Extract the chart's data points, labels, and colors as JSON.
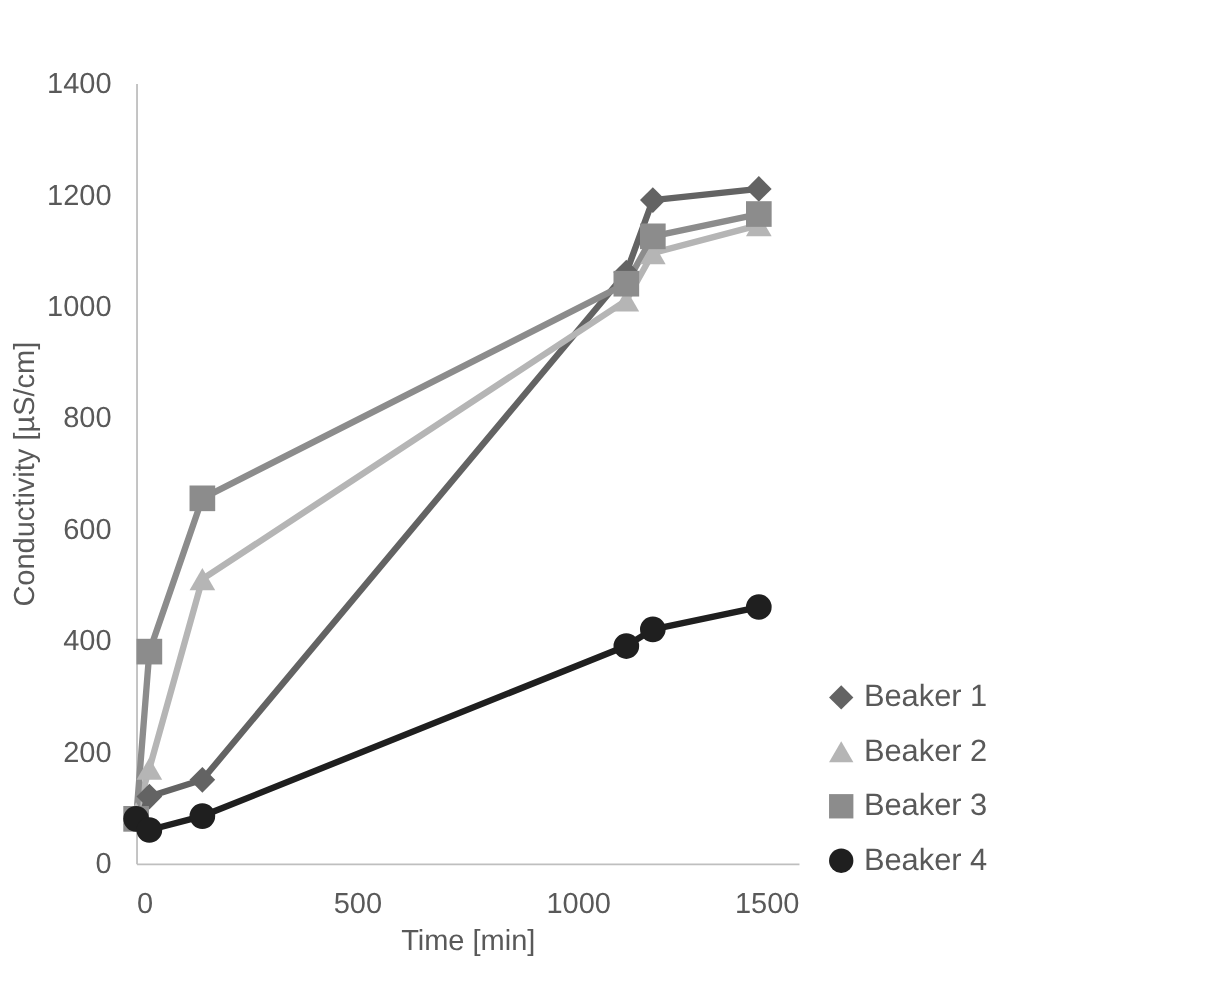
{
  "chart_data": {
    "type": "line",
    "xlabel": "Time [min]",
    "ylabel": "Conductivity [µS/cm]",
    "xlim": [
      0,
      1500
    ],
    "xticks": [
      0,
      500,
      1000,
      1500
    ],
    "ylim": [
      0,
      1400
    ],
    "yticks": [
      0,
      200,
      400,
      600,
      800,
      1000,
      1200,
      1400
    ],
    "x": [
      0,
      30,
      150,
      1110,
      1170,
      1410
    ],
    "series": [
      {
        "name": "Beaker 1",
        "color": "#636363",
        "marker": "diamond",
        "values": [
          80,
          120,
          150,
          1060,
          1190,
          1210
        ]
      },
      {
        "name": "Beaker 2",
        "color": "#b5b5b5",
        "marker": "triangle",
        "values": [
          90,
          170,
          510,
          1010,
          1095,
          1145
        ]
      },
      {
        "name": "Beaker 3",
        "color": "#8c8c8c",
        "marker": "square",
        "values": [
          80,
          380,
          655,
          1040,
          1125,
          1165
        ]
      },
      {
        "name": "Beaker 4",
        "color": "#1f1f1f",
        "marker": "circle",
        "values": [
          80,
          60,
          85,
          390,
          420,
          460
        ]
      }
    ],
    "grid": false,
    "legend": "right",
    "line_style": "solid"
  }
}
